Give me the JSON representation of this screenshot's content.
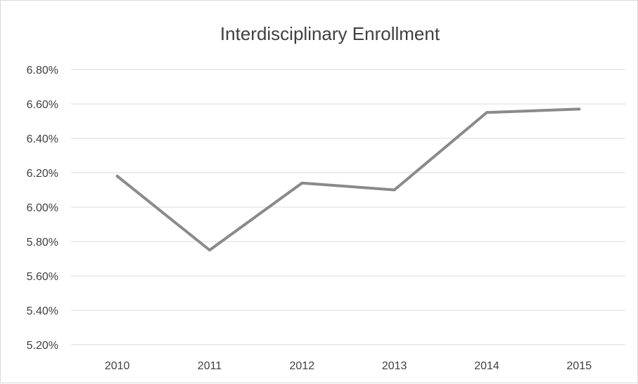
{
  "chart_data": {
    "type": "line",
    "title": "Interdisciplinary Enrollment",
    "xlabel": "",
    "ylabel": "",
    "categories": [
      "2010",
      "2011",
      "2012",
      "2013",
      "2014",
      "2015"
    ],
    "series": [
      {
        "values": [
          6.18,
          5.75,
          6.14,
          6.1,
          6.55,
          6.57
        ],
        "color": "#8a8a8a"
      }
    ],
    "ylim": [
      5.2,
      6.8
    ],
    "yticks": [
      5.2,
      5.4,
      5.6,
      5.8,
      6.0,
      6.2,
      6.4,
      6.6,
      6.8
    ],
    "ytick_labels": [
      "5.20%",
      "5.40%",
      "5.60%",
      "5.80%",
      "6.00%",
      "6.20%",
      "6.40%",
      "6.60%",
      "6.80%"
    ],
    "grid": true,
    "legend": "none"
  }
}
